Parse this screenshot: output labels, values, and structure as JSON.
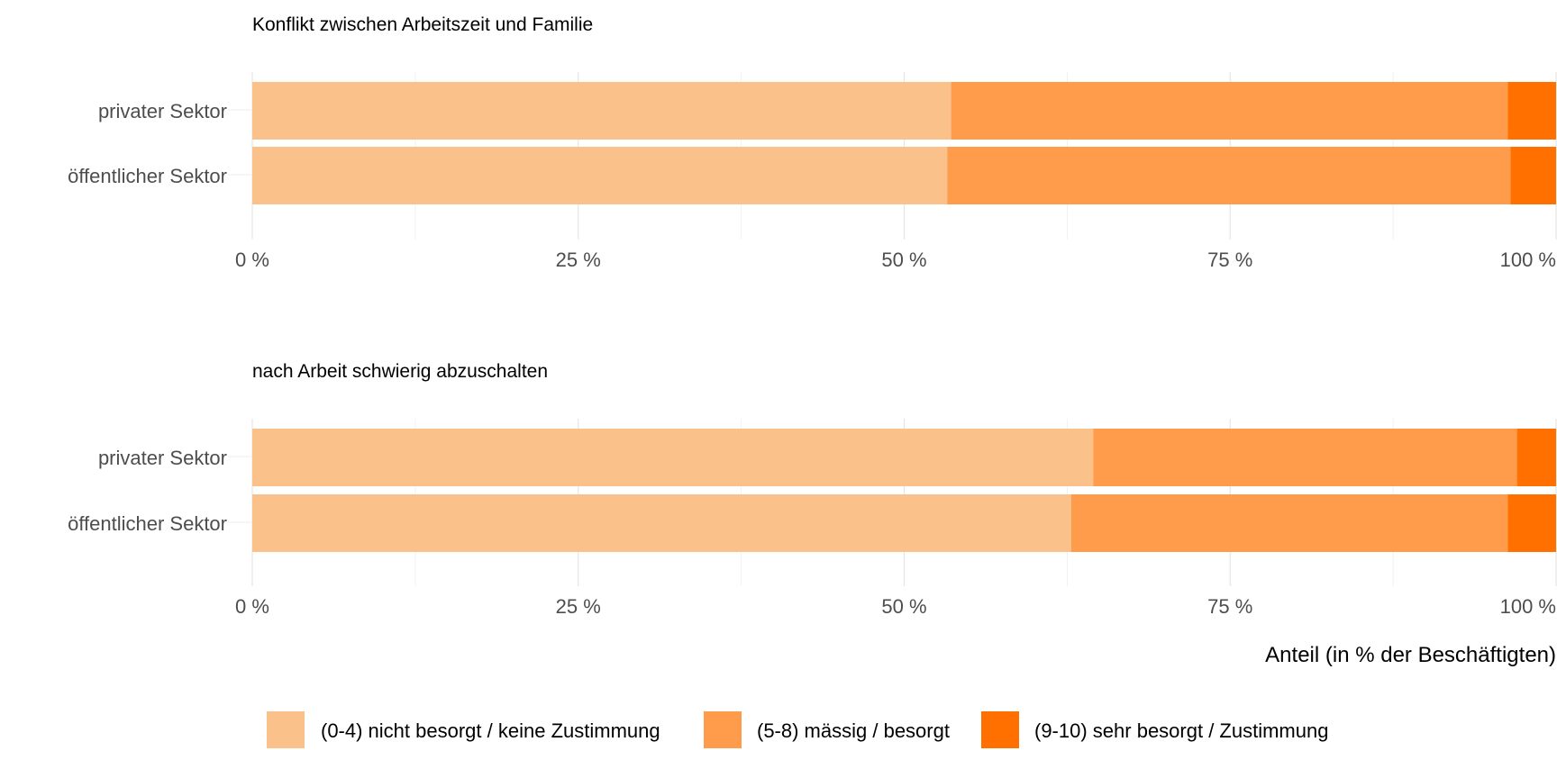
{
  "chart_data": {
    "type": "bar",
    "orientation": "horizontal",
    "stacked": true,
    "normalized": true,
    "xlabel": "Anteil (in % der Beschäftigten)",
    "xlim": [
      0,
      100
    ],
    "x_ticks": [
      0,
      25,
      50,
      75,
      100
    ],
    "x_tick_labels": [
      "0 %",
      "25 %",
      "50 %",
      "75 %",
      "100 %"
    ],
    "grid": true,
    "legend_position": "bottom",
    "legend": [
      {
        "name": "(0-4) nicht besorgt / keine Zustimmung",
        "color": "#FAC18B"
      },
      {
        "name": "(5-8) mässig / besorgt",
        "color": "#FF9C4C"
      },
      {
        "name": "(9-10) sehr besorgt / Zustimmung",
        "color": "#FF7000"
      }
    ],
    "panels": [
      {
        "title": "Konflikt zwischen Arbeitszeit und Familie",
        "categories": [
          "privater Sektor",
          "öffentlicher Sektor"
        ],
        "series": [
          {
            "name": "(0-4) nicht besorgt / keine Zustimmung",
            "values": [
              53.6,
              53.3
            ]
          },
          {
            "name": "(5-8) mässig / besorgt",
            "values": [
              42.7,
              43.2
            ]
          },
          {
            "name": "(9-10) sehr besorgt / Zustimmung",
            "values": [
              3.7,
              3.5
            ]
          }
        ]
      },
      {
        "title": "nach Arbeit schwierig abzuschalten",
        "categories": [
          "privater Sektor",
          "öffentlicher Sektor"
        ],
        "series": [
          {
            "name": "(0-4) nicht besorgt / keine Zustimmung",
            "values": [
              64.5,
              62.8
            ]
          },
          {
            "name": "(5-8) mässig / besorgt",
            "values": [
              32.5,
              33.5
            ]
          },
          {
            "name": "(9-10) sehr besorgt / Zustimmung",
            "values": [
              3.0,
              3.7
            ]
          }
        ]
      }
    ]
  }
}
